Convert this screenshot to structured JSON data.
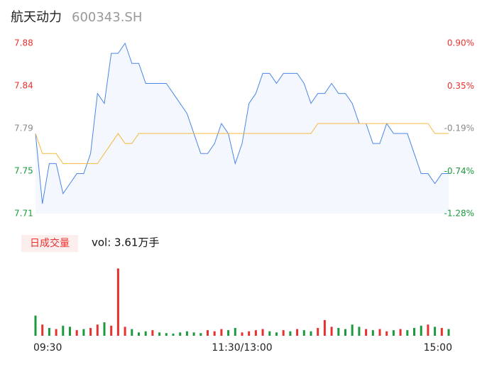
{
  "chart_data": {
    "type": "intraday",
    "title": "航天动力",
    "subtitle": "600343.SH",
    "x": [
      0,
      4,
      8,
      12,
      16,
      20,
      24,
      28,
      32,
      36,
      40,
      44,
      48,
      52,
      56,
      60,
      64,
      68,
      72,
      76,
      80,
      84,
      88,
      92,
      96,
      100,
      104,
      108,
      112,
      116,
      120,
      124,
      128,
      132,
      136,
      140,
      144,
      148,
      152,
      156,
      160,
      164,
      168,
      172,
      176,
      180,
      184,
      188,
      192,
      196,
      200,
      204,
      208,
      212,
      216,
      220,
      224,
      228,
      232,
      236,
      240
    ],
    "xlim": [
      0,
      240
    ],
    "xticks": [
      {
        "value": 0,
        "label": "09:30"
      },
      {
        "value": 120,
        "label": "11:30/13:00"
      },
      {
        "value": 240,
        "label": "15:00"
      }
    ],
    "ylim": [
      7.71,
      7.88
    ],
    "yticks": [
      {
        "value": 7.71,
        "label": "7.71"
      },
      {
        "value": 7.7525,
        "label": "7.75"
      },
      {
        "value": 7.795,
        "label": "7.79"
      },
      {
        "value": 7.8375,
        "label": "7.84"
      },
      {
        "value": 7.88,
        "label": "7.88"
      }
    ],
    "y2lim": [
      -1.28,
      0.9
    ],
    "y2ticks": [
      {
        "value": -1.28,
        "label": "-1.28%"
      },
      {
        "value": -0.74,
        "label": "-0.74%"
      },
      {
        "value": -0.19,
        "label": "-0.19%"
      },
      {
        "value": 0.35,
        "label": "0.35%"
      },
      {
        "value": 0.9,
        "label": "0.90%"
      }
    ],
    "tick_colors": [
      "#1a9a3c",
      "#1a9a3c",
      "#888888",
      "#e8312f",
      "#e8312f"
    ],
    "series": [
      {
        "name": "price",
        "color": "#4a86e8",
        "fill": "#f4f7fd",
        "values": [
          7.79,
          7.72,
          7.76,
          7.76,
          7.73,
          7.74,
          7.75,
          7.75,
          7.77,
          7.83,
          7.82,
          7.87,
          7.87,
          7.88,
          7.86,
          7.86,
          7.84,
          7.84,
          7.84,
          7.84,
          7.83,
          7.82,
          7.81,
          7.79,
          7.77,
          7.77,
          7.78,
          7.8,
          7.79,
          7.76,
          7.78,
          7.82,
          7.83,
          7.85,
          7.85,
          7.84,
          7.85,
          7.85,
          7.85,
          7.84,
          7.82,
          7.83,
          7.83,
          7.84,
          7.83,
          7.83,
          7.82,
          7.8,
          7.8,
          7.78,
          7.78,
          7.8,
          7.79,
          7.79,
          7.79,
          7.77,
          7.75,
          7.75,
          7.74,
          7.75,
          7.75
        ]
      },
      {
        "name": "average",
        "color": "#f5b83d",
        "values": [
          7.79,
          7.77,
          7.77,
          7.77,
          7.76,
          7.76,
          7.76,
          7.76,
          7.76,
          7.76,
          7.77,
          7.78,
          7.79,
          7.78,
          7.78,
          7.79,
          7.79,
          7.79,
          7.79,
          7.79,
          7.79,
          7.79,
          7.79,
          7.79,
          7.79,
          7.79,
          7.79,
          7.79,
          7.79,
          7.79,
          7.79,
          7.79,
          7.79,
          7.79,
          7.79,
          7.79,
          7.79,
          7.79,
          7.79,
          7.79,
          7.79,
          7.8,
          7.8,
          7.8,
          7.8,
          7.8,
          7.8,
          7.8,
          7.8,
          7.8,
          7.8,
          7.8,
          7.8,
          7.8,
          7.8,
          7.8,
          7.8,
          7.8,
          7.79,
          7.79,
          7.79
        ]
      }
    ],
    "volume": {
      "button": "日成交量",
      "label": "vol: 3.61万手",
      "vlim": [
        0,
        3100
      ],
      "values": [
        900,
        500,
        350,
        300,
        450,
        400,
        250,
        300,
        350,
        500,
        600,
        450,
        3000,
        400,
        300,
        150,
        200,
        250,
        150,
        120,
        100,
        150,
        200,
        150,
        120,
        250,
        200,
        300,
        250,
        350,
        150,
        200,
        250,
        300,
        200,
        150,
        250,
        200,
        300,
        250,
        200,
        350,
        700,
        400,
        350,
        300,
        500,
        400,
        300,
        250,
        300,
        200,
        250,
        300,
        250,
        350,
        450,
        500,
        400,
        350,
        300
      ],
      "colors": [
        "#1a9a3c",
        "#e8312f",
        "#1a9a3c",
        "#e8312f",
        "#1a9a3c",
        "#1a9a3c",
        "#e8312f",
        "#1a9a3c",
        "#e8312f",
        "#e8312f",
        "#1a9a3c",
        "#e8312f",
        "#e8312f",
        "#e8312f",
        "#1a9a3c",
        "#1a9a3c",
        "#1a9a3c",
        "#e8312f",
        "#1a9a3c",
        "#1a9a3c",
        "#1a9a3c",
        "#1a9a3c",
        "#1a9a3c",
        "#1a9a3c",
        "#1a9a3c",
        "#e8312f",
        "#e8312f",
        "#e8312f",
        "#1a9a3c",
        "#1a9a3c",
        "#e8312f",
        "#e8312f",
        "#e8312f",
        "#e8312f",
        "#1a9a3c",
        "#1a9a3c",
        "#e8312f",
        "#1a9a3c",
        "#e8312f",
        "#1a9a3c",
        "#1a9a3c",
        "#e8312f",
        "#e8312f",
        "#e8312f",
        "#1a9a3c",
        "#1a9a3c",
        "#1a9a3c",
        "#1a9a3c",
        "#e8312f",
        "#1a9a3c",
        "#e8312f",
        "#e8312f",
        "#1a9a3c",
        "#e8312f",
        "#1a9a3c",
        "#1a9a3c",
        "#1a9a3c",
        "#e8312f",
        "#1a9a3c",
        "#e8312f",
        "#1a9a3c"
      ]
    }
  }
}
